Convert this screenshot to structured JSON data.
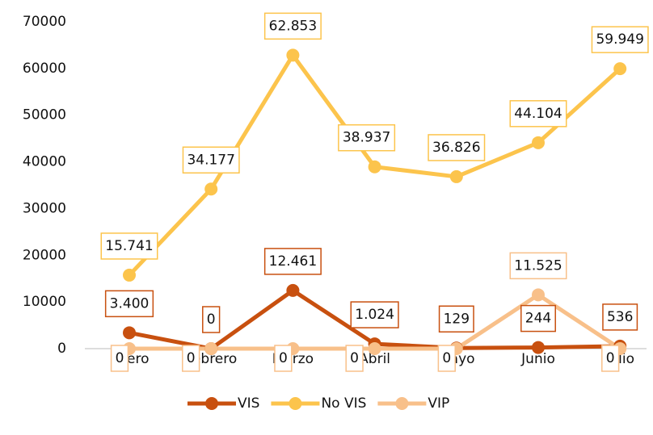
{
  "chart_data": {
    "type": "line",
    "categories": [
      "Enero",
      "Febrero",
      "Marzo",
      "Abril",
      "Mayo",
      "Junio",
      "Julio"
    ],
    "series": [
      {
        "name": "VIS",
        "color": "#c8500f",
        "values": [
          3400,
          0,
          12461,
          1024,
          129,
          244,
          536
        ],
        "value_labels": [
          "3.400",
          "0",
          "12.461",
          "1.024",
          "129",
          "244",
          "536"
        ]
      },
      {
        "name": "No VIS",
        "color": "#fcc44c",
        "values": [
          15741,
          34177,
          62853,
          38937,
          36826,
          44104,
          59949
        ],
        "value_labels": [
          "15.741",
          "34.177",
          "62.853",
          "38.937",
          "36.826",
          "44.104",
          "59.949"
        ]
      },
      {
        "name": "VIP",
        "color": "#f8c08a",
        "values": [
          0,
          0,
          0,
          0,
          0,
          11525,
          0
        ],
        "value_labels": [
          "0",
          "0",
          "0",
          "0",
          "0",
          "11.525",
          "0"
        ]
      }
    ],
    "ylim": [
      0,
      70000
    ],
    "yticks": [
      0,
      10000,
      20000,
      30000,
      40000,
      50000,
      60000,
      70000
    ],
    "grid": false,
    "legend": "bottom"
  }
}
